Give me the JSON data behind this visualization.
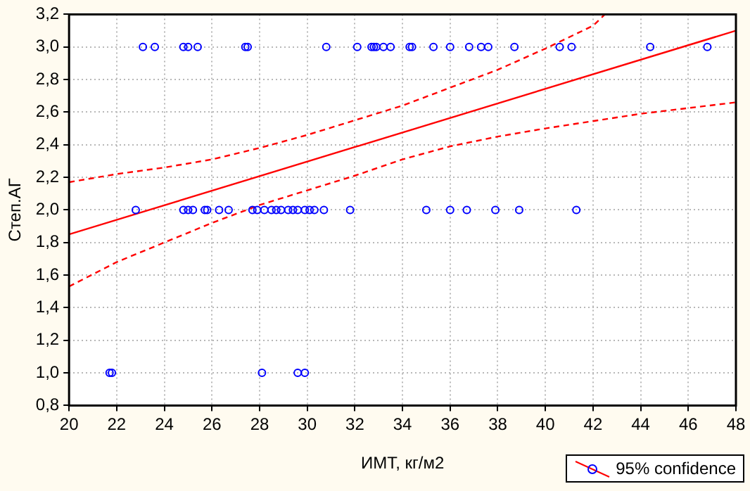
{
  "chart_data": {
    "type": "scatter",
    "xlabel": "ИМТ, кг/м2",
    "ylabel": "Степ.АГ",
    "xlim": [
      20,
      48
    ],
    "xticks": [
      20,
      22,
      24,
      26,
      28,
      30,
      32,
      34,
      36,
      38,
      40,
      42,
      44,
      46,
      48
    ],
    "ylim": [
      0.8,
      3.2
    ],
    "yticks": [
      {
        "value": 0.8,
        "label": "0,8"
      },
      {
        "value": 1.0,
        "label": "1,0"
      },
      {
        "value": 1.2,
        "label": "1,2"
      },
      {
        "value": 1.4,
        "label": "1,4"
      },
      {
        "value": 1.6,
        "label": "1,6"
      },
      {
        "value": 1.8,
        "label": "1,8"
      },
      {
        "value": 2.0,
        "label": "2,0"
      },
      {
        "value": 2.2,
        "label": "2,2"
      },
      {
        "value": 2.4,
        "label": "2,4"
      },
      {
        "value": 2.6,
        "label": "2,6"
      },
      {
        "value": 2.8,
        "label": "2,8"
      },
      {
        "value": 3.0,
        "label": "3,0"
      },
      {
        "value": 3.2,
        "label": "3,2"
      }
    ],
    "grid": true,
    "legend": "bottom right",
    "marker": "circle",
    "series": [
      {
        "name": "95% confidence",
        "type": "scatter",
        "color": "#0000ff",
        "x": [
          23.1,
          23.6,
          24.8,
          25.0,
          25.4,
          27.4,
          27.5,
          30.8,
          32.1,
          32.7,
          32.8,
          32.9,
          33.2,
          33.5,
          34.3,
          34.4,
          35.3,
          36.0,
          36.8,
          37.3,
          37.6,
          38.7,
          40.6,
          41.1,
          44.4,
          46.8,
          22.8,
          24.8,
          25.0,
          25.2,
          25.7,
          25.8,
          26.3,
          26.7,
          27.7,
          27.9,
          28.2,
          28.5,
          28.7,
          28.9,
          29.2,
          29.4,
          29.6,
          29.9,
          30.1,
          30.3,
          30.7,
          31.8,
          35.0,
          36.0,
          36.7,
          37.9,
          38.9,
          41.3,
          21.7,
          21.8,
          28.1,
          29.6,
          29.9
        ],
        "values": [
          3,
          3,
          3,
          3,
          3,
          3,
          3,
          3,
          3,
          3,
          3,
          3,
          3,
          3,
          3,
          3,
          3,
          3,
          3,
          3,
          3,
          3,
          3,
          3,
          3,
          3,
          2,
          2,
          2,
          2,
          2,
          2,
          2,
          2,
          2,
          2,
          2,
          2,
          2,
          2,
          2,
          2,
          2,
          2,
          2,
          2,
          2,
          2,
          2,
          2,
          2,
          2,
          2,
          2,
          1,
          1,
          1,
          1,
          1
        ]
      },
      {
        "type": "line",
        "color": "#ff0000",
        "line_style": "solid",
        "marker": "none",
        "x": [
          20,
          48
        ],
        "values": [
          1.85,
          3.1
        ]
      },
      {
        "type": "line",
        "color": "#ff0000",
        "line_style": "dashed",
        "marker": "none",
        "x": [
          20,
          22,
          24,
          26,
          28,
          30,
          32,
          34,
          36,
          38,
          40,
          42,
          42.5
        ],
        "values": [
          2.17,
          2.22,
          2.26,
          2.31,
          2.38,
          2.46,
          2.55,
          2.64,
          2.75,
          2.86,
          2.99,
          3.13,
          3.2
        ]
      },
      {
        "type": "line",
        "color": "#ff0000",
        "line_style": "dashed",
        "marker": "none",
        "x": [
          20,
          22,
          24,
          26,
          28,
          30,
          32,
          34,
          36,
          38,
          40,
          44,
          48
        ],
        "values": [
          1.53,
          1.68,
          1.8,
          1.92,
          2.03,
          2.12,
          2.21,
          2.31,
          2.39,
          2.45,
          2.5,
          2.59,
          2.66
        ]
      }
    ]
  }
}
